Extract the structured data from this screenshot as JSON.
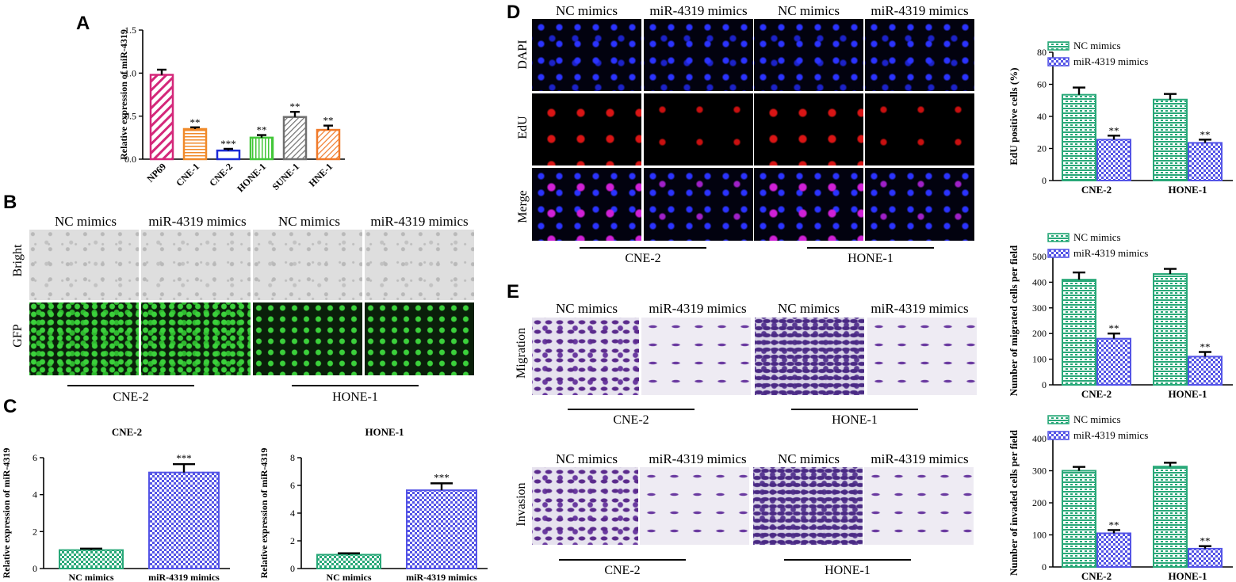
{
  "panels": {
    "A": "A",
    "B": "B",
    "C": "C",
    "D": "D",
    "E": "E"
  },
  "colors": {
    "NP69": "#d4287a",
    "CNE-1": "#f08a2a",
    "CNE-2": "#1c2bd8",
    "HONE-1": "#44c73a",
    "SUNE-1": "#707070",
    "HNE-1": "#f07a2a",
    "nc": "#28a878",
    "mir": "#5454e6",
    "miR_C": "#5454e6"
  },
  "panel_b": {
    "headers": [
      "NC mimics",
      "miR-4319 mimics",
      "NC mimics",
      "miR-4319 mimics"
    ],
    "rows": [
      "Bright",
      "GFP"
    ],
    "groups": [
      "CNE-2",
      "HONE-1"
    ]
  },
  "panel_d": {
    "headers": [
      "NC mimics",
      "miR-4319 mimics",
      "NC mimics",
      "miR-4319 mimics"
    ],
    "rows": [
      "DAPI",
      "EdU",
      "Merge"
    ],
    "groups": [
      "CNE-2",
      "HONE-1"
    ]
  },
  "panel_e": {
    "headers": [
      "NC mimics",
      "miR-4319 mimics",
      "NC mimics",
      "miR-4319 mimics"
    ],
    "rows": [
      "Migration",
      "Invasion"
    ],
    "groups": [
      "CNE-2",
      "HONE-1"
    ]
  },
  "chart_data": [
    {
      "id": "A",
      "type": "bar",
      "categories": [
        "NP69",
        "CNE-1",
        "CNE-2",
        "HONE-1",
        "SUNE-1",
        "HNE-1"
      ],
      "values": [
        0.98,
        0.35,
        0.1,
        0.25,
        0.49,
        0.34
      ],
      "errors": [
        0.06,
        0.02,
        0.02,
        0.03,
        0.06,
        0.05
      ],
      "significance": [
        "",
        "**",
        "***",
        "**",
        "**",
        "**"
      ],
      "ylabel": "Relative expression of miR-4319",
      "ylim": [
        0,
        1.5
      ],
      "yticks": [
        "0.0",
        "0.5",
        "1.0",
        "1.5"
      ]
    },
    {
      "id": "C1",
      "type": "bar",
      "title": "CNE-2",
      "categories": [
        "NC mimics",
        "miR-4319 mimics"
      ],
      "values": [
        1.0,
        5.2
      ],
      "errors": [
        0.08,
        0.45
      ],
      "significance": [
        "",
        "***"
      ],
      "ylabel": "Relative expression of miR-4319",
      "ylim": [
        0,
        6
      ],
      "yticks": [
        "0",
        "2",
        "4",
        "6"
      ]
    },
    {
      "id": "C2",
      "type": "bar",
      "title": "HONE-1",
      "categories": [
        "NC mimics",
        "miR-4319 mimics"
      ],
      "values": [
        1.0,
        5.65
      ],
      "errors": [
        0.1,
        0.5
      ],
      "significance": [
        "",
        "***"
      ],
      "ylabel": "Relative expression of miR-4319",
      "ylim": [
        0,
        8
      ],
      "yticks": [
        "0",
        "2",
        "4",
        "6",
        "8"
      ]
    },
    {
      "id": "D",
      "type": "bar",
      "categories": [
        "CNE-2",
        "HONE-1"
      ],
      "series": [
        {
          "name": "NC mimics",
          "values": [
            53.5,
            50.5
          ],
          "errors": [
            4.5,
            3.5
          ]
        },
        {
          "name": "miR-4319 mimics",
          "values": [
            25.5,
            23.5
          ],
          "errors": [
            2.5,
            2.0
          ]
        }
      ],
      "significance": [
        "**",
        "**"
      ],
      "ylabel": "EdU positive cells (%)",
      "ylim": [
        0,
        80
      ],
      "yticks": [
        "0",
        "20",
        "40",
        "60",
        "80"
      ],
      "legend": "top"
    },
    {
      "id": "E1",
      "type": "bar",
      "categories": [
        "CNE-2",
        "HONE-1"
      ],
      "series": [
        {
          "name": "NC mimics",
          "values": [
            410,
            432
          ],
          "errors": [
            28,
            20
          ]
        },
        {
          "name": "miR-4319 mimics",
          "values": [
            180,
            110
          ],
          "errors": [
            20,
            18
          ]
        }
      ],
      "significance": [
        "**",
        "**"
      ],
      "ylabel": "Number of migrated cells per field",
      "ylim": [
        0,
        500
      ],
      "yticks": [
        "0",
        "100",
        "200",
        "300",
        "400",
        "500"
      ],
      "legend": "top"
    },
    {
      "id": "E2",
      "type": "bar",
      "categories": [
        "CNE-2",
        "HONE-1"
      ],
      "series": [
        {
          "name": "NC mimics",
          "values": [
            300,
            313
          ],
          "errors": [
            12,
            12
          ]
        },
        {
          "name": "miR-4319 mimics",
          "values": [
            105,
            57
          ],
          "errors": [
            10,
            8
          ]
        }
      ],
      "significance": [
        "**",
        "**"
      ],
      "ylabel": "Number of invaded cells per field",
      "ylim": [
        0,
        400
      ],
      "yticks": [
        "0",
        "100",
        "200",
        "300",
        "400"
      ],
      "legend": "top"
    }
  ]
}
